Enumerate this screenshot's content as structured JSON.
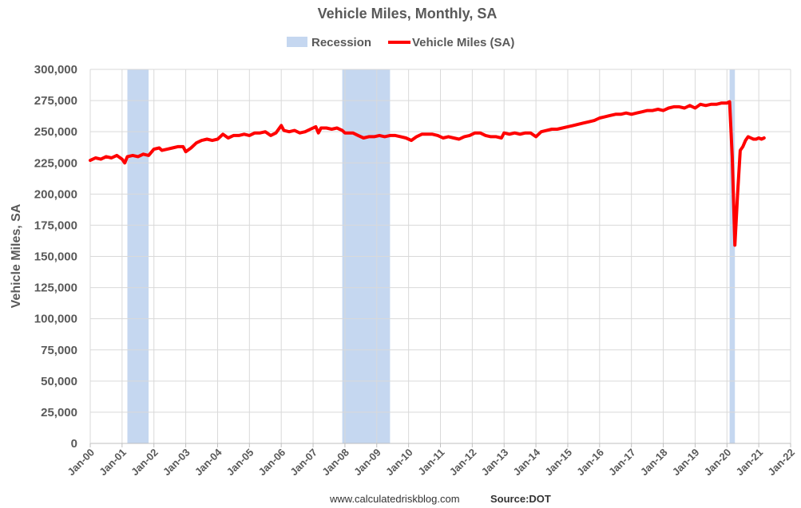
{
  "chart_data": {
    "type": "line",
    "title": "Vehicle Miles, Monthly, SA",
    "ylabel": "Vehicle Miles, SA",
    "xlabel": "",
    "ylim": [
      0,
      300000
    ],
    "y_ticks": [
      "0",
      "25,000",
      "50,000",
      "75,000",
      "100,000",
      "125,000",
      "150,000",
      "175,000",
      "200,000",
      "225,000",
      "250,000",
      "275,000",
      "300,000"
    ],
    "x_ticks": [
      "Jan-00",
      "Jan-01",
      "Jan-02",
      "Jan-03",
      "Jan-04",
      "Jan-05",
      "Jan-06",
      "Jan-07",
      "Jan-08",
      "Jan-09",
      "Jan-10",
      "Jan-11",
      "Jan-12",
      "Jan-13",
      "Jan-14",
      "Jan-15",
      "Jan-16",
      "Jan-17",
      "Jan-18",
      "Jan-19",
      "Jan-20",
      "Jan-21",
      "Jan-22"
    ],
    "x_range": [
      "2000-01",
      "2022-01"
    ],
    "grid": true,
    "legend_position": "top",
    "legend": [
      "Recession",
      "Vehicle Miles (SA)"
    ],
    "recessions": [
      {
        "start": "2001-03",
        "end": "2001-11"
      },
      {
        "start": "2007-12",
        "end": "2009-06"
      },
      {
        "start": "2020-02",
        "end": "2020-04"
      }
    ],
    "series": [
      {
        "name": "Vehicle Miles (SA)",
        "color": "#FF0000",
        "points": [
          [
            "2000-01",
            227000
          ],
          [
            "2000-03",
            229000
          ],
          [
            "2000-05",
            228000
          ],
          [
            "2000-07",
            230000
          ],
          [
            "2000-09",
            229000
          ],
          [
            "2000-11",
            231000
          ],
          [
            "2001-01",
            228000
          ],
          [
            "2001-02",
            225000
          ],
          [
            "2001-03",
            230000
          ],
          [
            "2001-05",
            231000
          ],
          [
            "2001-07",
            230000
          ],
          [
            "2001-09",
            232000
          ],
          [
            "2001-11",
            231000
          ],
          [
            "2002-01",
            236000
          ],
          [
            "2002-03",
            237000
          ],
          [
            "2002-04",
            235000
          ],
          [
            "2002-06",
            236000
          ],
          [
            "2002-08",
            237000
          ],
          [
            "2002-10",
            238000
          ],
          [
            "2002-12",
            238000
          ],
          [
            "2003-01",
            234000
          ],
          [
            "2003-03",
            237000
          ],
          [
            "2003-05",
            241000
          ],
          [
            "2003-07",
            243000
          ],
          [
            "2003-09",
            244000
          ],
          [
            "2003-11",
            243000
          ],
          [
            "2004-01",
            244000
          ],
          [
            "2004-03",
            248000
          ],
          [
            "2004-05",
            245000
          ],
          [
            "2004-07",
            247000
          ],
          [
            "2004-09",
            247000
          ],
          [
            "2004-11",
            248000
          ],
          [
            "2005-01",
            247000
          ],
          [
            "2005-03",
            249000
          ],
          [
            "2005-05",
            249000
          ],
          [
            "2005-07",
            250000
          ],
          [
            "2005-09",
            247000
          ],
          [
            "2005-11",
            249000
          ],
          [
            "2006-01",
            255000
          ],
          [
            "2006-02",
            251000
          ],
          [
            "2006-04",
            250000
          ],
          [
            "2006-06",
            251000
          ],
          [
            "2006-08",
            249000
          ],
          [
            "2006-10",
            250000
          ],
          [
            "2006-12",
            252000
          ],
          [
            "2007-02",
            254000
          ],
          [
            "2007-03",
            249000
          ],
          [
            "2007-04",
            253000
          ],
          [
            "2007-06",
            253000
          ],
          [
            "2007-08",
            252000
          ],
          [
            "2007-10",
            253000
          ],
          [
            "2007-12",
            251000
          ],
          [
            "2008-01",
            249000
          ],
          [
            "2008-02",
            249000
          ],
          [
            "2008-04",
            249000
          ],
          [
            "2008-06",
            247000
          ],
          [
            "2008-08",
            245000
          ],
          [
            "2008-10",
            246000
          ],
          [
            "2008-12",
            246000
          ],
          [
            "2009-02",
            247000
          ],
          [
            "2009-04",
            246000
          ],
          [
            "2009-06",
            247000
          ],
          [
            "2009-08",
            247000
          ],
          [
            "2009-10",
            246000
          ],
          [
            "2009-12",
            245000
          ],
          [
            "2010-02",
            243000
          ],
          [
            "2010-04",
            246000
          ],
          [
            "2010-06",
            248000
          ],
          [
            "2010-08",
            248000
          ],
          [
            "2010-10",
            248000
          ],
          [
            "2010-12",
            247000
          ],
          [
            "2011-02",
            245000
          ],
          [
            "2011-04",
            246000
          ],
          [
            "2011-06",
            245000
          ],
          [
            "2011-08",
            244000
          ],
          [
            "2011-10",
            246000
          ],
          [
            "2011-12",
            247000
          ],
          [
            "2012-02",
            249000
          ],
          [
            "2012-04",
            249000
          ],
          [
            "2012-06",
            247000
          ],
          [
            "2012-08",
            246000
          ],
          [
            "2012-10",
            246000
          ],
          [
            "2012-12",
            245000
          ],
          [
            "2013-01",
            249000
          ],
          [
            "2013-03",
            248000
          ],
          [
            "2013-05",
            249000
          ],
          [
            "2013-07",
            248000
          ],
          [
            "2013-09",
            249000
          ],
          [
            "2013-11",
            249000
          ],
          [
            "2014-01",
            246000
          ],
          [
            "2014-03",
            250000
          ],
          [
            "2014-05",
            251000
          ],
          [
            "2014-07",
            252000
          ],
          [
            "2014-09",
            252000
          ],
          [
            "2014-11",
            253000
          ],
          [
            "2015-01",
            254000
          ],
          [
            "2015-03",
            255000
          ],
          [
            "2015-05",
            256000
          ],
          [
            "2015-07",
            257000
          ],
          [
            "2015-09",
            258000
          ],
          [
            "2015-11",
            259000
          ],
          [
            "2016-01",
            261000
          ],
          [
            "2016-03",
            262000
          ],
          [
            "2016-05",
            263000
          ],
          [
            "2016-07",
            264000
          ],
          [
            "2016-09",
            264000
          ],
          [
            "2016-11",
            265000
          ],
          [
            "2017-01",
            264000
          ],
          [
            "2017-03",
            265000
          ],
          [
            "2017-05",
            266000
          ],
          [
            "2017-07",
            267000
          ],
          [
            "2017-09",
            267000
          ],
          [
            "2017-11",
            268000
          ],
          [
            "2018-01",
            267000
          ],
          [
            "2018-03",
            269000
          ],
          [
            "2018-05",
            270000
          ],
          [
            "2018-07",
            270000
          ],
          [
            "2018-09",
            269000
          ],
          [
            "2018-11",
            271000
          ],
          [
            "2019-01",
            269000
          ],
          [
            "2019-03",
            272000
          ],
          [
            "2019-05",
            271000
          ],
          [
            "2019-07",
            272000
          ],
          [
            "2019-09",
            272000
          ],
          [
            "2019-11",
            273000
          ],
          [
            "2020-01",
            273000
          ],
          [
            "2020-02",
            274000
          ],
          [
            "2020-03",
            230000
          ],
          [
            "2020-04",
            159000
          ],
          [
            "2020-05",
            200000
          ],
          [
            "2020-06",
            235000
          ],
          [
            "2020-07",
            238000
          ],
          [
            "2020-08",
            243000
          ],
          [
            "2020-09",
            246000
          ],
          [
            "2020-10",
            245000
          ],
          [
            "2020-11",
            244000
          ],
          [
            "2020-12",
            244000
          ],
          [
            "2021-01",
            245000
          ],
          [
            "2021-02",
            244000
          ],
          [
            "2021-03",
            245000
          ]
        ]
      }
    ],
    "recession_color": "#C5D7F0"
  },
  "footer": {
    "site": "www.calculatedriskblog.com",
    "source": "Source:DOT"
  }
}
